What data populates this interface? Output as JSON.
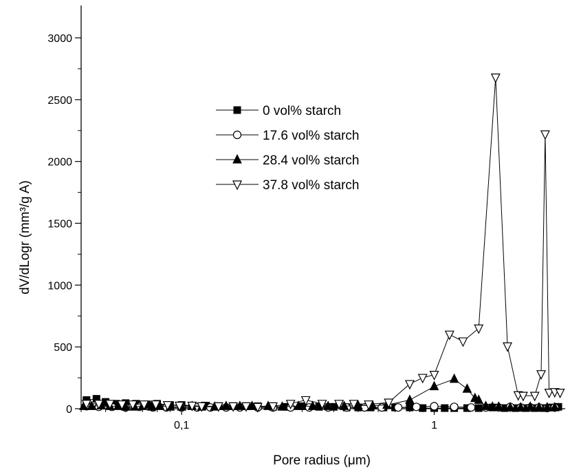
{
  "chart_data": {
    "type": "line",
    "title": "",
    "xlabel": "Pore radius (μm)",
    "ylabel": "dV/dLogr (mm³/g A)",
    "xscale": "log",
    "xlim": [
      0.04,
      3.3
    ],
    "ylim": [
      0,
      3000
    ],
    "x_ticks": [
      {
        "value": 0.1,
        "label": "0,1"
      },
      {
        "value": 1,
        "label": "1"
      }
    ],
    "y_ticks": [
      {
        "value": 0,
        "label": "0"
      },
      {
        "value": 500,
        "label": "500"
      },
      {
        "value": 1000,
        "label": "1000"
      },
      {
        "value": 1500,
        "label": "1500"
      },
      {
        "value": 2000,
        "label": "2000"
      },
      {
        "value": 2500,
        "label": "2500"
      },
      {
        "value": 3000,
        "label": "3000"
      }
    ],
    "grid": false,
    "legend_position": "upper-center",
    "series": [
      {
        "name": "0 vol% starch",
        "marker": "filled-square",
        "x": [
          0.042,
          0.046,
          0.05,
          0.055,
          0.06,
          0.066,
          0.073,
          0.08,
          0.09,
          0.1,
          0.11,
          0.125,
          0.14,
          0.16,
          0.18,
          0.2,
          0.23,
          0.26,
          0.3,
          0.35,
          0.4,
          0.45,
          0.5,
          0.56,
          0.63,
          0.7,
          0.8,
          0.9,
          1.0,
          1.1,
          1.2,
          1.35,
          1.5,
          1.7,
          1.9,
          2.1,
          2.3,
          2.5,
          2.7,
          2.9,
          3.1
        ],
        "y": [
          70,
          80,
          55,
          40,
          45,
          40,
          35,
          40,
          30,
          30,
          25,
          25,
          20,
          20,
          20,
          20,
          15,
          15,
          20,
          15,
          15,
          10,
          10,
          10,
          10,
          10,
          10,
          5,
          5,
          5,
          5,
          5,
          5,
          10,
          5,
          5,
          5,
          5,
          5,
          10,
          15
        ]
      },
      {
        "name": "17.6 vol% starch",
        "marker": "open-circle",
        "x": [
          0.042,
          0.047,
          0.053,
          0.06,
          0.068,
          0.077,
          0.087,
          0.1,
          0.115,
          0.13,
          0.15,
          0.17,
          0.2,
          0.23,
          0.27,
          0.32,
          0.38,
          0.45,
          0.53,
          0.62,
          0.72,
          0.85,
          1.0,
          1.2,
          1.4,
          1.6,
          1.8,
          2.0,
          2.2,
          2.4,
          2.6,
          2.8,
          3.0
        ],
        "y": [
          20,
          15,
          15,
          10,
          15,
          10,
          10,
          10,
          10,
          10,
          10,
          10,
          10,
          10,
          10,
          10,
          10,
          10,
          10,
          10,
          10,
          15,
          20,
          15,
          10,
          10,
          10,
          15,
          10,
          10,
          10,
          5,
          10
        ]
      },
      {
        "name": "28.4 vol% starch",
        "marker": "filled-triangle",
        "x": [
          0.041,
          0.044,
          0.048,
          0.052,
          0.056,
          0.06,
          0.065,
          0.07,
          0.076,
          0.082,
          0.09,
          0.1,
          0.11,
          0.12,
          0.135,
          0.15,
          0.17,
          0.19,
          0.22,
          0.25,
          0.29,
          0.33,
          0.38,
          0.44,
          0.5,
          0.57,
          0.65,
          0.8,
          1.0,
          1.2,
          1.35,
          1.45,
          1.5,
          1.6,
          1.7,
          1.8,
          2.0,
          2.2,
          2.4,
          2.6,
          2.8,
          3.0
        ],
        "y": [
          20,
          20,
          25,
          20,
          20,
          15,
          15,
          20,
          15,
          20,
          15,
          15,
          20,
          15,
          15,
          20,
          20,
          20,
          20,
          15,
          20,
          20,
          20,
          20,
          25,
          25,
          30,
          70,
          180,
          240,
          160,
          85,
          70,
          20,
          15,
          15,
          10,
          10,
          15,
          10,
          10,
          10
        ]
      },
      {
        "name": "37.8 vol% starch",
        "marker": "open-triangle-down",
        "x": [
          0.042,
          0.047,
          0.052,
          0.058,
          0.064,
          0.071,
          0.079,
          0.088,
          0.098,
          0.11,
          0.12,
          0.14,
          0.16,
          0.18,
          0.2,
          0.23,
          0.27,
          0.31,
          0.36,
          0.42,
          0.48,
          0.55,
          0.66,
          0.8,
          0.9,
          1.0,
          1.15,
          1.3,
          1.5,
          1.75,
          1.95,
          2.15,
          2.25,
          2.5,
          2.65,
          2.75,
          2.85,
          3.0,
          3.15
        ],
        "y": [
          40,
          40,
          40,
          35,
          35,
          35,
          35,
          30,
          25,
          25,
          20,
          20,
          20,
          20,
          15,
          20,
          40,
          70,
          40,
          40,
          40,
          35,
          50,
          200,
          250,
          275,
          600,
          545,
          650,
          2680,
          505,
          110,
          105,
          105,
          280,
          2220,
          130,
          135,
          130
        ]
      }
    ]
  }
}
